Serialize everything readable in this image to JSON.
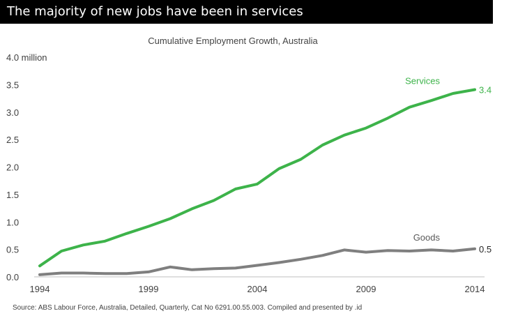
{
  "header": {
    "title": "The majority of new jobs have been in services"
  },
  "source_note": "Source:  ABS Labour Force, Australia, Detailed, Quarterly, Cat No 6291.00.55.003. Compiled and presented by .id",
  "chart_data": {
    "type": "line",
    "title": "Cumulative Employment Growth, Australia",
    "xlabel": "",
    "ylabel": "",
    "xlim": [
      1994,
      2014
    ],
    "ylim": [
      0,
      4
    ],
    "x_ticks": [
      1994,
      1999,
      2004,
      2009,
      2014
    ],
    "x_tick_labels": [
      "1994",
      "1999",
      "2004",
      "2009",
      "2014"
    ],
    "y_ticks": [
      0,
      0.5,
      1,
      1.5,
      2,
      2.5,
      3,
      3.5,
      4
    ],
    "y_tick_labels": [
      "0.0",
      "0.5",
      "1.0",
      "1.5",
      "2.0",
      "2.5",
      "3.0",
      "3.5",
      "4.0 million"
    ],
    "grid": false,
    "legend": "inline labels at line ends",
    "x": [
      1994,
      1995,
      1996,
      1997,
      1998,
      1999,
      2000,
      2001,
      2002,
      2003,
      2004,
      2005,
      2006,
      2007,
      2008,
      2009,
      2010,
      2011,
      2012,
      2013,
      2014
    ],
    "series": [
      {
        "name": "Services",
        "color": "#3db34a",
        "end_label": "3.4",
        "values": [
          0.2,
          0.47,
          0.58,
          0.65,
          0.79,
          0.92,
          1.06,
          1.24,
          1.39,
          1.6,
          1.69,
          1.97,
          2.14,
          2.4,
          2.58,
          2.71,
          2.89,
          3.09,
          3.21,
          3.34,
          3.41
        ]
      },
      {
        "name": "Goods",
        "color": "#7f7f7f",
        "end_label": "0.5",
        "values": [
          0.04,
          0.07,
          0.07,
          0.06,
          0.06,
          0.09,
          0.18,
          0.13,
          0.15,
          0.16,
          0.21,
          0.26,
          0.32,
          0.39,
          0.49,
          0.45,
          0.48,
          0.47,
          0.49,
          0.47,
          0.51
        ]
      }
    ]
  }
}
